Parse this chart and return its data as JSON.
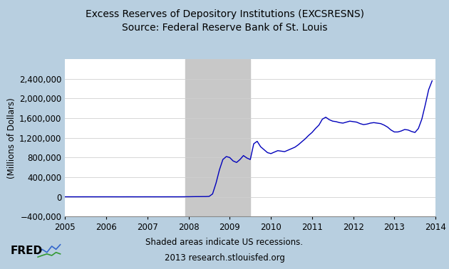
{
  "title_line1": "Excess Reserves of Depository Institutions (EXCSRESNS)",
  "title_line2": "Source: Federal Reserve Bank of St. Louis",
  "ylabel": "(Millions of Dollars)",
  "footer_line1": "Shaded areas indicate US recessions.",
  "footer_line2": "2013 research.stlouisfed.org",
  "recession_start": 2007.917,
  "recession_end": 2009.5,
  "xlim": [
    2005,
    2014
  ],
  "ylim": [
    -400000,
    2800000
  ],
  "yticks": [
    -400000,
    0,
    400000,
    800000,
    1200000,
    1600000,
    2000000,
    2400000
  ],
  "xticks": [
    2005,
    2006,
    2007,
    2008,
    2009,
    2010,
    2011,
    2012,
    2013,
    2014
  ],
  "background_color": "#b8cfe0",
  "plot_bg_color": "#ffffff",
  "line_color": "#0000bb",
  "recession_color": "#c8c8c8",
  "title_fontsize": 10,
  "axis_fontsize": 8.5,
  "data_x": [
    2005.0,
    2005.083,
    2005.167,
    2005.25,
    2005.333,
    2005.417,
    2005.5,
    2005.583,
    2005.667,
    2005.75,
    2005.833,
    2005.917,
    2006.0,
    2006.083,
    2006.167,
    2006.25,
    2006.333,
    2006.417,
    2006.5,
    2006.583,
    2006.667,
    2006.75,
    2006.833,
    2006.917,
    2007.0,
    2007.083,
    2007.167,
    2007.25,
    2007.333,
    2007.417,
    2007.5,
    2007.583,
    2007.667,
    2007.75,
    2007.833,
    2007.917,
    2008.0,
    2008.083,
    2008.167,
    2008.25,
    2008.333,
    2008.417,
    2008.5,
    2008.583,
    2008.667,
    2008.75,
    2008.833,
    2008.917,
    2009.0,
    2009.083,
    2009.167,
    2009.25,
    2009.333,
    2009.417,
    2009.5,
    2009.583,
    2009.667,
    2009.75,
    2009.833,
    2009.917,
    2010.0,
    2010.083,
    2010.167,
    2010.25,
    2010.333,
    2010.417,
    2010.5,
    2010.583,
    2010.667,
    2010.75,
    2010.833,
    2010.917,
    2011.0,
    2011.083,
    2011.167,
    2011.25,
    2011.333,
    2011.417,
    2011.5,
    2011.583,
    2011.667,
    2011.75,
    2011.833,
    2011.917,
    2012.0,
    2012.083,
    2012.167,
    2012.25,
    2012.333,
    2012.417,
    2012.5,
    2012.583,
    2012.667,
    2012.75,
    2012.833,
    2012.917,
    2013.0,
    2013.083,
    2013.167,
    2013.25,
    2013.333,
    2013.417,
    2013.5,
    2013.583,
    2013.667,
    2013.75,
    2013.833,
    2013.917
  ],
  "data_y": [
    1800,
    1700,
    1600,
    1500,
    1600,
    1700,
    1800,
    1900,
    1700,
    1600,
    1700,
    1800,
    1900,
    1800,
    1700,
    1600,
    1500,
    1600,
    1700,
    1800,
    1600,
    1500,
    1600,
    1700,
    1800,
    1700,
    1600,
    1700,
    1500,
    1600,
    1700,
    1800,
    1600,
    1700,
    2000,
    2500,
    3000,
    4000,
    5000,
    5500,
    6000,
    6500,
    10000,
    60000,
    280000,
    550000,
    760000,
    820000,
    800000,
    730000,
    700000,
    760000,
    840000,
    790000,
    760000,
    1080000,
    1130000,
    1020000,
    960000,
    900000,
    880000,
    910000,
    940000,
    930000,
    920000,
    950000,
    980000,
    1010000,
    1060000,
    1120000,
    1180000,
    1250000,
    1310000,
    1390000,
    1460000,
    1580000,
    1620000,
    1570000,
    1540000,
    1530000,
    1510000,
    1500000,
    1520000,
    1540000,
    1530000,
    1520000,
    1490000,
    1470000,
    1480000,
    1500000,
    1510000,
    1500000,
    1490000,
    1460000,
    1420000,
    1360000,
    1320000,
    1320000,
    1340000,
    1370000,
    1360000,
    1330000,
    1310000,
    1390000,
    1580000,
    1870000,
    2180000,
    2360000
  ]
}
